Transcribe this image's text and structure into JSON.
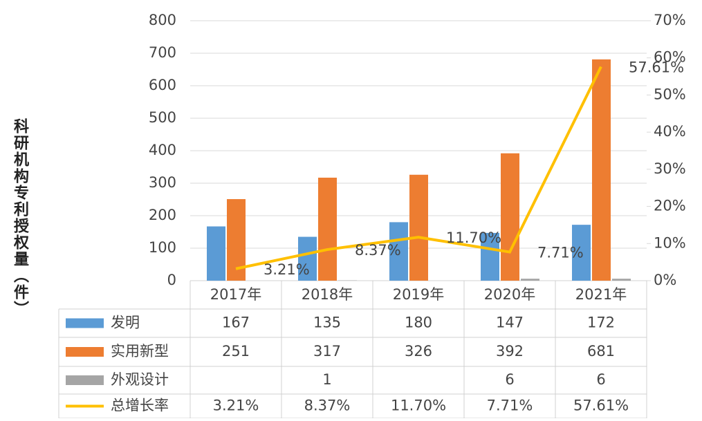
{
  "chart_data": {
    "type": "bar",
    "y_label": "科研机构专利授权量（件）",
    "categories": [
      "2017年",
      "2018年",
      "2019年",
      "2020年",
      "2021年"
    ],
    "ylim": [
      0,
      800
    ],
    "yticks": [
      0,
      100,
      200,
      300,
      400,
      500,
      600,
      700,
      800
    ],
    "y2lim": [
      0,
      70
    ],
    "y2ticks": [
      {
        "value": 0,
        "label": "0%"
      },
      {
        "value": 10,
        "label": "10%"
      },
      {
        "value": 20,
        "label": "20%"
      },
      {
        "value": 30,
        "label": "30%"
      },
      {
        "value": 40,
        "label": "40%"
      },
      {
        "value": 50,
        "label": "50%"
      },
      {
        "value": 60,
        "label": "60%"
      },
      {
        "value": 70,
        "label": "70%"
      }
    ],
    "grid": true,
    "series": [
      {
        "name": "发明",
        "color": "#5b9bd5",
        "values": [
          167,
          135,
          180,
          147,
          172
        ]
      },
      {
        "name": "实用新型",
        "color": "#ed7d31",
        "values": [
          251,
          317,
          326,
          392,
          681
        ]
      },
      {
        "name": "外观设计",
        "color": "#a5a5a5",
        "values": [
          null,
          1,
          null,
          6,
          6
        ]
      },
      {
        "name": "总增长率",
        "color": "#ffc000",
        "type": "line",
        "axis": "y2",
        "values": [
          3.21,
          8.37,
          11.7,
          7.71,
          57.61
        ],
        "value_labels": [
          "3.21%",
          "8.37%",
          "11.70%",
          "7.71%",
          "57.61%"
        ]
      }
    ]
  }
}
